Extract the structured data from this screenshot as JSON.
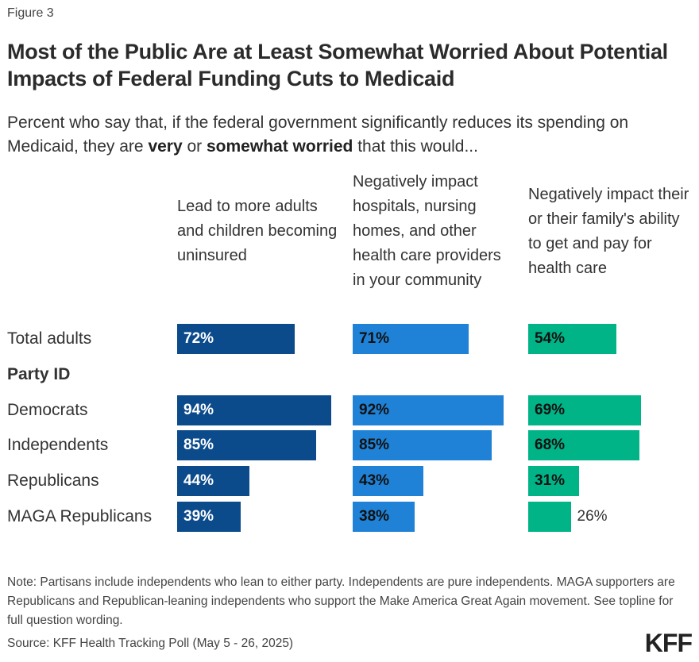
{
  "figure_label": "Figure 3",
  "title": "Most of the Public Are at Least Somewhat Worried About Potential Impacts of Federal Funding Cuts to Medicaid",
  "subtitle": {
    "part1": "Percent who say that, if the federal government significantly reduces its spending on Medicaid, they are ",
    "bold1": "very",
    "part2": " or ",
    "bold2": "somewhat worried",
    "part3": " that this would..."
  },
  "chart_data": {
    "type": "bar",
    "orientation": "horizontal",
    "title": "Most of the Public Are at Least Somewhat Worried About Potential Impacts of Federal Funding Cuts to Medicaid",
    "xlabel": "",
    "ylabel": "",
    "xlim": [
      0,
      100
    ],
    "grid": false,
    "unit": "%",
    "rows": [
      {
        "label": "Total adults",
        "group_header": false
      },
      {
        "label": "Party ID",
        "group_header": true
      },
      {
        "label": "Democrats",
        "group_header": false
      },
      {
        "label": "Independents",
        "group_header": false
      },
      {
        "label": "Republicans",
        "group_header": false
      },
      {
        "label": "MAGA Republicans",
        "group_header": false
      }
    ],
    "categories": [
      "Total adults",
      "Democrats",
      "Independents",
      "Republicans",
      "MAGA Republicans"
    ],
    "series": [
      {
        "name": "Lead to more adults and children becoming uninsured",
        "color": "#0b4a8b",
        "label_color": "#ffffff",
        "values": [
          72,
          94,
          85,
          44,
          39
        ]
      },
      {
        "name": "Negatively impact hospitals, nursing homes, and other health care providers in your community",
        "color": "#1f82d6",
        "label_color": "#111111",
        "values": [
          71,
          92,
          85,
          43,
          38
        ]
      },
      {
        "name": "Negatively impact their or their family's ability to get and pay for health care",
        "color": "#00b487",
        "label_color": "#111111",
        "values": [
          54,
          69,
          68,
          31,
          26
        ]
      }
    ]
  },
  "column_headers": [
    "Lead to more adults and children becoming uninsured",
    "Negatively impact hospitals, nursing homes, and other health care providers in your community",
    "Negatively impact their or their family's ability to get and pay for health care"
  ],
  "note": "Note: Partisans include independents who lean to either party. Independents are pure independents. MAGA supporters are Republicans and Republican-leaning independents who support the Make America Great Again movement. See topline for full question wording.",
  "source": "Source: KFF Health Tracking Poll (May 5 - 26, 2025)",
  "logo": "KFF"
}
